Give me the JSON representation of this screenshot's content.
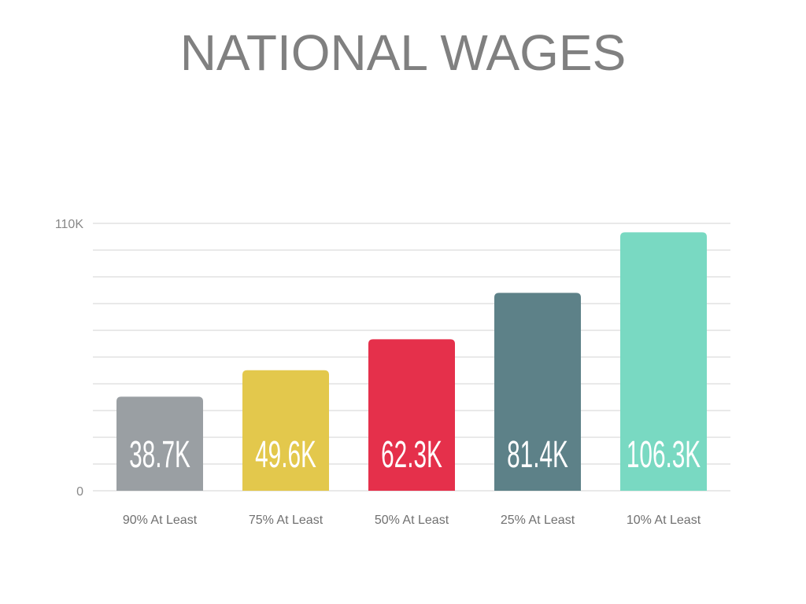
{
  "chart_data": {
    "type": "bar",
    "title": "NATIONAL WAGES",
    "categories": [
      "90% At Least",
      "75% At Least",
      "50% At Least",
      "25% At Least",
      "10% At Least"
    ],
    "values": [
      38.7,
      49.6,
      62.3,
      81.4,
      106.3
    ],
    "value_labels": [
      "38.7K",
      "49.6K",
      "62.3K",
      "81.4K",
      "106.3K"
    ],
    "colors": [
      "#9a9fa3",
      "#e3c84c",
      "#e5304b",
      "#5d8188",
      "#79d9c2"
    ],
    "yticks": [
      {
        "value": 0,
        "label": "0"
      },
      {
        "value": 110,
        "label": "110K"
      }
    ],
    "ylim": [
      0,
      110
    ],
    "grid": true,
    "grid_lines": 11,
    "xlabel": "",
    "ylabel": ""
  }
}
